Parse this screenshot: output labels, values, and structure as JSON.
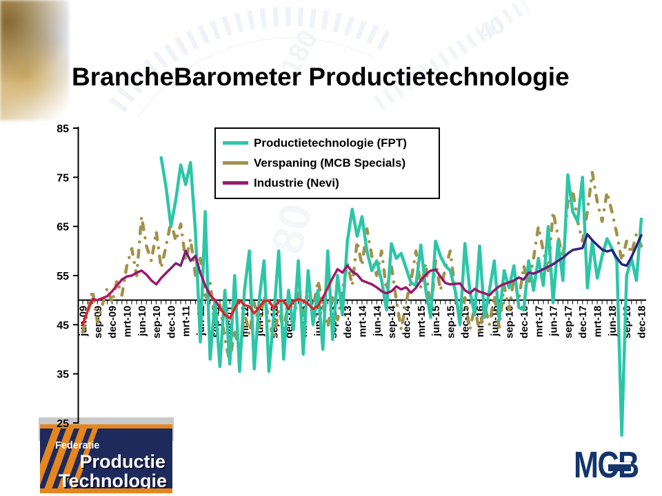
{
  "title": "BrancheBarometer Productietechnologie",
  "chart_data": {
    "type": "line",
    "x_unit": "month",
    "months_total": 115,
    "x_labels": [
      "jun-09",
      "sep-09",
      "dec-09",
      "mrt-10",
      "jun-10",
      "sep-10",
      "dec-10",
      "mrt-11",
      "jun-11",
      "sep-11",
      "dec-11",
      "mrt-12",
      "jun-12",
      "sep-12",
      "dec-12",
      "mrt-13",
      "jun-13",
      "sep-13",
      "dec-13",
      "mrt-14",
      "jun-14",
      "sep-14",
      "dec-14",
      "mrt-15",
      "jun-15",
      "sep-15",
      "dec-15",
      "mrt-16",
      "jun-16",
      "sep-16",
      "dec-16",
      "mrt-17",
      "jun-17",
      "sep-17",
      "dec-17",
      "mrt-18",
      "jun-18",
      "sep-18",
      "dec-18"
    ],
    "y_ticks": [
      85,
      75,
      65,
      55,
      45,
      35,
      25
    ],
    "ylim": [
      25,
      85
    ],
    "x_axis_at_value": 50,
    "legend_position": "top-center",
    "series": [
      {
        "name": "Productietechnologie (FPT)",
        "color": "#2cc6a7",
        "style": "solid",
        "width": 4.5,
        "start_index": 16,
        "values": [
          79,
          73,
          65,
          70.5,
          77.5,
          73.5,
          78,
          64,
          41.5,
          68,
          38,
          50,
          36.5,
          52,
          37,
          55,
          35.5,
          52,
          60,
          36,
          50,
          58,
          35.5,
          47,
          60,
          38,
          52,
          44,
          58,
          39,
          56,
          45,
          52,
          40,
          60,
          42,
          55,
          47,
          62,
          68.5,
          63,
          67,
          60,
          56,
          58,
          54,
          48,
          61.5,
          58.5,
          59.5,
          56.5,
          53.5,
          53,
          61.2,
          52,
          46.5,
          62,
          59,
          57,
          56,
          52,
          45,
          61.5,
          52,
          47,
          61,
          46.5,
          52,
          58,
          46,
          56,
          52.5,
          57,
          48.5,
          48,
          58,
          52,
          58.5,
          53,
          65,
          49.5,
          62,
          54,
          75.5,
          68,
          66,
          75,
          52.5,
          62,
          54.5,
          59,
          62.5,
          60.5,
          58,
          22.5,
          55,
          58.5,
          54,
          66.5
        ]
      },
      {
        "name": "Verspaning (MCB Specials)",
        "color": "#a2914a",
        "style": "dash-dot",
        "width": 4.5,
        "start_index": 0,
        "values": [
          43.5,
          47.5,
          52,
          45.5,
          49,
          52.5,
          49.5,
          54,
          51,
          57,
          60.5,
          55,
          67,
          61,
          58,
          64,
          56.5,
          61,
          66,
          62,
          65.5,
          58,
          62.5,
          55,
          58.5,
          50,
          53.5,
          45.5,
          49,
          42,
          37.5,
          44,
          39,
          47.5,
          43,
          49.5,
          44.5,
          51,
          46,
          42,
          48,
          44,
          50,
          45,
          51.5,
          46.5,
          52.5,
          48,
          54,
          49,
          44.5,
          50.5,
          46,
          52,
          57.5,
          53,
          62,
          57,
          64.5,
          59,
          55,
          60,
          52,
          57,
          50,
          44,
          49.5,
          54,
          60,
          52.5,
          57.5,
          47,
          58,
          52,
          56.5,
          60,
          52,
          46,
          50.5,
          44,
          48.5,
          43.5,
          49,
          45,
          51,
          44.5,
          53,
          48,
          54.5,
          50,
          57,
          53,
          58.5,
          65,
          60,
          56,
          68,
          63,
          58.5,
          70,
          72.5,
          66,
          62,
          68,
          76,
          70,
          66,
          72,
          68,
          63.5,
          58,
          62,
          59.5,
          63.5,
          61
        ]
      },
      {
        "name": "Industrie (Nevi)",
        "color": "#9b1b6e",
        "style": "solid",
        "width": 3.5,
        "start_index": 0,
        "values": [
          45,
          47.8,
          50.2,
          50,
          50.4,
          50.8,
          51.8,
          53,
          54.2,
          54.8,
          55,
          55.6,
          56,
          55.2,
          54,
          53.2,
          54.5,
          55.5,
          56.5,
          57.5,
          57,
          60,
          58,
          59,
          55.5,
          53,
          51,
          50,
          48.5,
          47,
          46.3,
          48.3,
          50,
          49,
          48.7,
          47.3,
          48.5,
          49.8,
          49.9,
          48.3,
          49.8,
          49.9,
          48.2,
          49.8,
          50.2,
          49.9,
          49.2,
          48.2,
          48.8,
          50.5,
          52.5,
          54.5,
          56.3,
          55.6,
          57,
          55.8,
          55.2,
          54,
          53.6,
          53.2,
          52.6,
          51.8,
          51.4,
          51.8,
          52.8,
          52.2,
          52.6,
          51.5,
          52.5,
          54,
          55.2,
          56,
          56.2,
          54.8,
          53.5,
          53.2,
          53.3,
          53.4,
          52,
          51.4,
          52.3,
          51.7,
          51.4,
          51,
          52,
          52.8,
          53.3,
          53.6,
          54,
          54.6,
          54.2,
          55.6,
          55.4,
          55.8,
          56.3,
          56.8,
          57.3,
          58,
          58.6,
          59.5,
          60.2,
          60.4,
          60.6,
          63.4,
          62.2,
          61.2,
          60.3,
          59.9,
          60.2,
          58.6,
          57.3,
          57,
          58.8,
          61,
          63.2
        ],
        "color_segments": [
          [
            0,
            "#e32128"
          ],
          [
            2,
            "#bb1560"
          ],
          [
            8,
            "#9a186b"
          ],
          [
            17,
            "#7a1f73"
          ],
          [
            24,
            "#9a186b"
          ],
          [
            26,
            "#c2184f"
          ],
          [
            28,
            "#e32128"
          ],
          [
            49,
            "#c2184f"
          ],
          [
            51,
            "#a5186a"
          ],
          [
            54,
            "#8d1a6e"
          ],
          [
            57,
            "#9a186b"
          ],
          [
            88,
            "#7c1d73"
          ],
          [
            92,
            "#651f7b"
          ],
          [
            96,
            "#4c2181"
          ],
          [
            99,
            "#372384"
          ],
          [
            103,
            "#28217f"
          ]
        ]
      }
    ]
  },
  "watermark": {
    "numerals": [
      "180",
      "40",
      "80"
    ]
  },
  "footer": {
    "fpt_logo": {
      "line1": "Federatie",
      "line2": "Productie",
      "line3": "Technologie"
    },
    "mcb_logo_text": "MCB"
  }
}
